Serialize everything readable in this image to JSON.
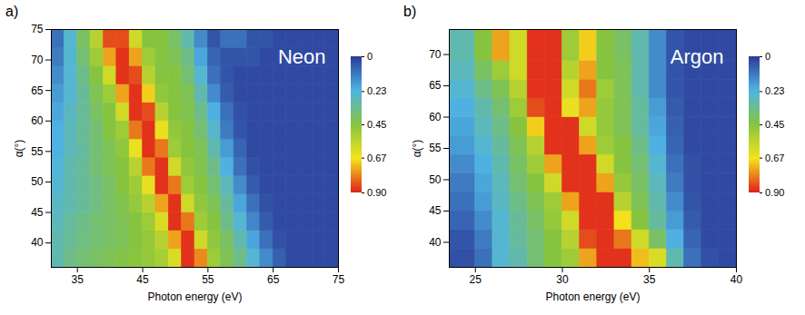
{
  "chart_data": [
    {
      "type": "heatmap",
      "panel": "a)",
      "title": "Neon",
      "xlabel": "Photon energy (eV)",
      "ylabel": "α(°)",
      "xlim": [
        31,
        75
      ],
      "xticks": [
        35,
        45,
        55,
        65,
        75
      ],
      "ylim": [
        36,
        75
      ],
      "yticks": [
        40,
        45,
        50,
        55,
        60,
        65,
        70,
        75
      ],
      "x_bins": [
        31,
        33,
        35,
        37,
        39,
        41,
        43,
        45,
        47,
        49,
        51,
        53,
        55,
        57,
        59,
        61,
        63,
        65,
        67,
        69,
        71,
        73,
        75
      ],
      "y_bins": [
        36,
        39,
        42,
        45,
        48,
        51,
        54,
        57,
        60,
        63,
        66,
        69,
        72,
        75
      ],
      "values": [
        [
          0.3,
          0.35,
          0.38,
          0.4,
          0.42,
          0.44,
          0.46,
          0.48,
          0.52,
          0.62,
          0.88,
          0.78,
          0.5,
          0.42,
          0.35,
          0.25,
          0.15,
          0.07,
          0.03,
          0.03,
          0.03,
          0.03
        ],
        [
          0.3,
          0.33,
          0.36,
          0.38,
          0.4,
          0.42,
          0.45,
          0.48,
          0.55,
          0.75,
          0.88,
          0.6,
          0.47,
          0.4,
          0.3,
          0.2,
          0.1,
          0.04,
          0.03,
          0.03,
          0.03,
          0.03
        ],
        [
          0.28,
          0.32,
          0.35,
          0.38,
          0.4,
          0.42,
          0.45,
          0.5,
          0.62,
          0.88,
          0.8,
          0.5,
          0.45,
          0.35,
          0.25,
          0.14,
          0.06,
          0.03,
          0.03,
          0.03,
          0.03,
          0.03
        ],
        [
          0.27,
          0.3,
          0.33,
          0.36,
          0.4,
          0.43,
          0.48,
          0.55,
          0.75,
          0.88,
          0.6,
          0.47,
          0.42,
          0.32,
          0.2,
          0.1,
          0.04,
          0.03,
          0.03,
          0.03,
          0.03,
          0.03
        ],
        [
          0.25,
          0.3,
          0.33,
          0.36,
          0.4,
          0.45,
          0.5,
          0.65,
          0.88,
          0.8,
          0.5,
          0.45,
          0.38,
          0.28,
          0.15,
          0.06,
          0.03,
          0.03,
          0.03,
          0.03,
          0.03,
          0.03
        ],
        [
          0.24,
          0.3,
          0.33,
          0.38,
          0.42,
          0.45,
          0.55,
          0.8,
          0.88,
          0.6,
          0.47,
          0.43,
          0.35,
          0.22,
          0.1,
          0.04,
          0.03,
          0.03,
          0.03,
          0.03,
          0.03,
          0.03
        ],
        [
          0.22,
          0.28,
          0.32,
          0.38,
          0.42,
          0.47,
          0.65,
          0.88,
          0.8,
          0.5,
          0.45,
          0.42,
          0.3,
          0.18,
          0.08,
          0.03,
          0.03,
          0.03,
          0.03,
          0.03,
          0.03,
          0.03
        ],
        [
          0.22,
          0.28,
          0.33,
          0.38,
          0.45,
          0.5,
          0.8,
          0.88,
          0.65,
          0.47,
          0.45,
          0.38,
          0.26,
          0.12,
          0.05,
          0.03,
          0.03,
          0.03,
          0.03,
          0.03,
          0.03,
          0.03
        ],
        [
          0.2,
          0.27,
          0.33,
          0.4,
          0.45,
          0.6,
          0.88,
          0.85,
          0.55,
          0.45,
          0.43,
          0.35,
          0.22,
          0.1,
          0.04,
          0.03,
          0.03,
          0.03,
          0.03,
          0.03,
          0.03,
          0.03
        ],
        [
          0.18,
          0.25,
          0.33,
          0.42,
          0.5,
          0.75,
          0.88,
          0.7,
          0.47,
          0.45,
          0.42,
          0.3,
          0.15,
          0.06,
          0.03,
          0.03,
          0.03,
          0.03,
          0.03,
          0.03,
          0.03,
          0.03
        ],
        [
          0.15,
          0.25,
          0.35,
          0.45,
          0.6,
          0.88,
          0.85,
          0.55,
          0.45,
          0.45,
          0.38,
          0.25,
          0.1,
          0.05,
          0.03,
          0.03,
          0.03,
          0.03,
          0.03,
          0.03,
          0.03,
          0.03
        ],
        [
          0.12,
          0.25,
          0.38,
          0.5,
          0.75,
          0.88,
          0.75,
          0.5,
          0.45,
          0.42,
          0.35,
          0.2,
          0.08,
          0.05,
          0.05,
          0.05,
          0.03,
          0.03,
          0.03,
          0.03,
          0.03,
          0.03
        ],
        [
          0.1,
          0.25,
          0.4,
          0.55,
          0.85,
          0.85,
          0.6,
          0.45,
          0.45,
          0.4,
          0.3,
          0.15,
          0.05,
          0.1,
          0.1,
          0.05,
          0.05,
          0.03,
          0.03,
          0.03,
          0.03,
          0.03
        ]
      ],
      "colorbar": {
        "range": [
          0,
          0.9
        ],
        "ticks": [
          0,
          0.23,
          0.45,
          0.67,
          {
            "value": 0.9,
            "label": "0.90"
          }
        ],
        "colors": [
          "#2b3a99",
          "#4fb4e3",
          "#86c440",
          "#f4e41c",
          "#e0211b"
        ]
      }
    },
    {
      "type": "heatmap",
      "panel": "b)",
      "title": "Argon",
      "xlabel": "Photon energy (eV)",
      "ylabel": "α(°)",
      "xlim": [
        23.5,
        40
      ],
      "xticks": [
        25,
        30,
        35,
        40
      ],
      "ylim": [
        36,
        74
      ],
      "yticks": [
        40,
        45,
        50,
        55,
        60,
        65,
        70
      ],
      "x_bins": [
        23.5,
        25,
        26,
        27,
        28,
        29,
        30,
        31,
        32,
        33,
        34,
        35,
        36,
        37,
        38,
        39,
        40
      ],
      "y_bins": [
        36,
        39,
        42,
        45,
        48,
        51,
        54,
        57,
        60,
        63,
        66,
        69,
        74
      ],
      "values": [
        [
          0.04,
          0.1,
          0.25,
          0.3,
          0.38,
          0.45,
          0.5,
          0.75,
          0.88,
          0.88,
          0.72,
          0.62,
          0.3,
          0.1,
          0.04,
          0.03
        ],
        [
          0.05,
          0.12,
          0.25,
          0.32,
          0.38,
          0.45,
          0.55,
          0.85,
          0.88,
          0.8,
          0.6,
          0.4,
          0.22,
          0.08,
          0.03,
          0.03
        ],
        [
          0.08,
          0.15,
          0.25,
          0.33,
          0.4,
          0.48,
          0.6,
          0.88,
          0.88,
          0.68,
          0.45,
          0.32,
          0.18,
          0.06,
          0.03,
          0.03
        ],
        [
          0.1,
          0.18,
          0.27,
          0.35,
          0.42,
          0.5,
          0.75,
          0.88,
          0.88,
          0.55,
          0.42,
          0.3,
          0.15,
          0.05,
          0.03,
          0.03
        ],
        [
          0.12,
          0.2,
          0.28,
          0.38,
          0.45,
          0.6,
          0.88,
          0.88,
          0.75,
          0.48,
          0.4,
          0.28,
          0.12,
          0.04,
          0.03,
          0.03
        ],
        [
          0.15,
          0.22,
          0.3,
          0.4,
          0.5,
          0.75,
          0.88,
          0.88,
          0.6,
          0.45,
          0.38,
          0.25,
          0.1,
          0.04,
          0.03,
          0.03
        ],
        [
          0.18,
          0.25,
          0.32,
          0.42,
          0.55,
          0.88,
          0.88,
          0.75,
          0.5,
          0.45,
          0.35,
          0.22,
          0.08,
          0.03,
          0.03,
          0.03
        ],
        [
          0.2,
          0.28,
          0.35,
          0.45,
          0.7,
          0.88,
          0.88,
          0.6,
          0.48,
          0.42,
          0.32,
          0.2,
          0.07,
          0.03,
          0.03,
          0.03
        ],
        [
          0.22,
          0.3,
          0.38,
          0.5,
          0.85,
          0.88,
          0.65,
          0.75,
          0.48,
          0.42,
          0.32,
          0.18,
          0.06,
          0.03,
          0.03,
          0.03
        ],
        [
          0.25,
          0.35,
          0.42,
          0.55,
          0.88,
          0.88,
          0.6,
          0.8,
          0.5,
          0.42,
          0.3,
          0.15,
          0.05,
          0.03,
          0.03,
          0.03
        ],
        [
          0.28,
          0.4,
          0.5,
          0.6,
          0.88,
          0.88,
          0.55,
          0.75,
          0.45,
          0.42,
          0.3,
          0.15,
          0.05,
          0.03,
          0.03,
          0.03
        ],
        [
          0.3,
          0.45,
          0.75,
          0.6,
          0.88,
          0.88,
          0.5,
          0.7,
          0.45,
          0.4,
          0.3,
          0.15,
          0.05,
          0.03,
          0.03,
          0.03
        ]
      ],
      "colorbar": {
        "range": [
          0,
          0.9
        ],
        "ticks": [
          0,
          0.23,
          0.45,
          0.67,
          {
            "value": 0.9,
            "label": "0.90"
          }
        ],
        "colors": [
          "#2b3a99",
          "#4fb4e3",
          "#86c440",
          "#f4e41c",
          "#e0211b"
        ]
      }
    }
  ]
}
